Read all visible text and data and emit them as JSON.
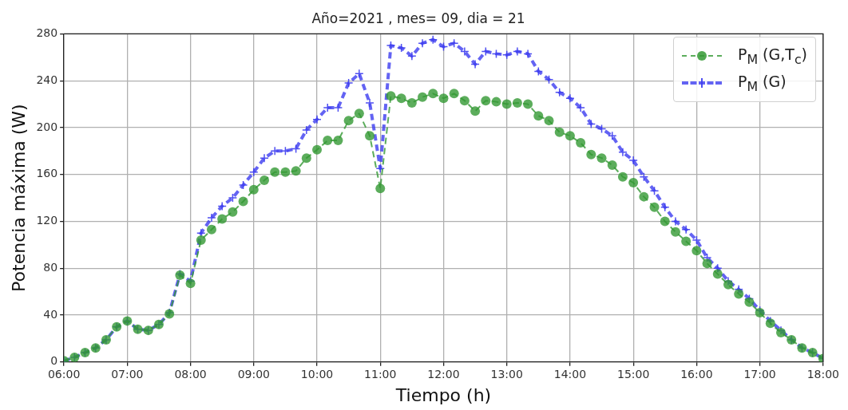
{
  "chart_data": {
    "type": "line",
    "title": "Año=2021 , mes= 09, dia = 21",
    "xlabel": "Tiempo (h)",
    "ylabel": "Potencia máxima (W)",
    "x": [
      6,
      6.1667,
      6.3333,
      6.5,
      6.6667,
      6.8333,
      7,
      7.1667,
      7.3333,
      7.5,
      7.6667,
      7.8333,
      8,
      8.1667,
      8.3333,
      8.5,
      8.6667,
      8.8333,
      9,
      9.1667,
      9.3333,
      9.5,
      9.6667,
      9.8333,
      10,
      10.1667,
      10.3333,
      10.5,
      10.6667,
      10.8333,
      11,
      11.1667,
      11.3333,
      11.5,
      11.6667,
      11.8333,
      12,
      12.1667,
      12.3333,
      12.5,
      12.6667,
      12.8333,
      13,
      13.1667,
      13.3333,
      13.5,
      13.6667,
      13.8333,
      14,
      14.1667,
      14.3333,
      14.5,
      14.6667,
      14.8333,
      15,
      15.1667,
      15.3333,
      15.5,
      15.6667,
      15.8333,
      16,
      16.1667,
      16.3333,
      16.5,
      16.6667,
      16.8333,
      17,
      17.1667,
      17.3333,
      17.5,
      17.6667,
      17.8333,
      18
    ],
    "series": [
      {
        "name": "P$_{M}$ (G,T$_{c}$)",
        "color": "#339933",
        "marker": "circle",
        "line_style": "dashed",
        "values": [
          1,
          4,
          8,
          12,
          19,
          30,
          35,
          28,
          27,
          32,
          41,
          74,
          67,
          104,
          113,
          122,
          128,
          137,
          147,
          155,
          162,
          162,
          163,
          174,
          181,
          189,
          189,
          206,
          212,
          193,
          148,
          227,
          225,
          221,
          226,
          229,
          225,
          229,
          223,
          214,
          223,
          222,
          220,
          221,
          220,
          210,
          206,
          196,
          193,
          187,
          177,
          174,
          168,
          158,
          153,
          141,
          132,
          120,
          111,
          103,
          95,
          84,
          75,
          66,
          58,
          51,
          42,
          33,
          25,
          19,
          12,
          8,
          3
        ]
      },
      {
        "name": "P$_{M}$ (G)",
        "color": "#3c3cf0",
        "marker": "cross",
        "line_style": "dashed",
        "values": [
          1,
          4,
          8,
          12,
          19,
          30,
          35,
          28,
          27,
          32,
          42,
          75,
          69,
          110,
          123,
          133,
          140,
          151,
          162,
          174,
          180,
          180,
          182,
          198,
          207,
          217,
          217,
          238,
          246,
          221,
          165,
          270,
          268,
          261,
          272,
          275,
          269,
          272,
          265,
          254,
          265,
          263,
          262,
          265,
          263,
          248,
          241,
          230,
          225,
          217,
          203,
          199,
          193,
          179,
          172,
          158,
          146,
          132,
          120,
          113,
          104,
          89,
          80,
          69,
          62,
          54,
          44,
          35,
          27,
          19,
          12,
          8,
          3
        ]
      }
    ],
    "xlim": [
      6,
      18
    ],
    "xticks": [
      {
        "value": 6,
        "label": "06:00"
      },
      {
        "value": 7,
        "label": "07:00"
      },
      {
        "value": 8,
        "label": "08:00"
      },
      {
        "value": 9,
        "label": "09:00"
      },
      {
        "value": 10,
        "label": "10:00"
      },
      {
        "value": 11,
        "label": "11:00"
      },
      {
        "value": 12,
        "label": "12:00"
      },
      {
        "value": 13,
        "label": "13:00"
      },
      {
        "value": 14,
        "label": "14:00"
      },
      {
        "value": 15,
        "label": "15:00"
      },
      {
        "value": 16,
        "label": "16:00"
      },
      {
        "value": 17,
        "label": "17:00"
      },
      {
        "value": 18,
        "label": "18:00"
      }
    ],
    "ylim": [
      0,
      280
    ],
    "yticks": [
      0,
      40,
      80,
      120,
      160,
      200,
      240,
      280
    ],
    "grid": true,
    "legend": "top right"
  }
}
